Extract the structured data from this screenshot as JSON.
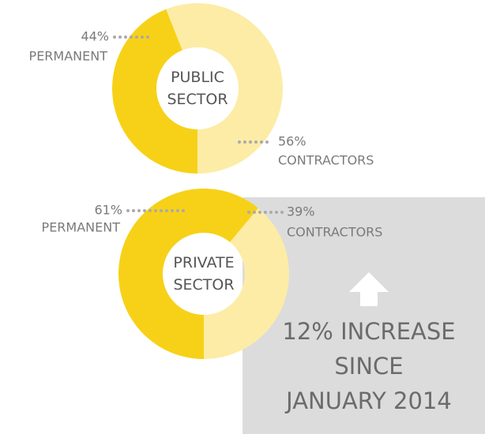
{
  "chart_data": [
    {
      "type": "donut",
      "title": "PUBLIC SECTOR",
      "categories": [
        "PERMANENT",
        "CONTRACTORS"
      ],
      "values": [
        44,
        56
      ],
      "value_labels": [
        "44%",
        "56%"
      ],
      "colors": [
        "#f7d117",
        "#fdeca6"
      ]
    },
    {
      "type": "donut",
      "title": "PRIVATE SECTOR",
      "categories": [
        "PERMANENT",
        "CONTRACTORS"
      ],
      "values": [
        61,
        39
      ],
      "value_labels": [
        "61%",
        "39%"
      ],
      "colors": [
        "#f7d117",
        "#fdeca6"
      ]
    }
  ],
  "annotation": {
    "lines": [
      "12% INCREASE",
      "SINCE",
      "JANUARY 2014"
    ]
  }
}
